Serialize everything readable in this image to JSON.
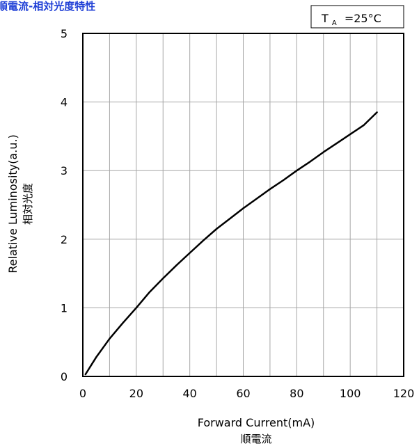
{
  "chart_data": {
    "type": "line",
    "title": "順電流-相対光度特性",
    "title_color": "#1F3FD6",
    "condition": {
      "symbol": "T",
      "subscript": "A",
      "value": "=25°C"
    },
    "xlabel": "Forward Current(mA)",
    "xlabel_sub": "順電流",
    "ylabel": "Relative Luminosity(a.u.)",
    "ylabel_sub": "相対光度",
    "xlim": [
      0,
      120
    ],
    "ylim": [
      0,
      5
    ],
    "x_ticks": [
      {
        "value": 0,
        "label": "0"
      },
      {
        "value": 20,
        "label": "20"
      },
      {
        "value": 40,
        "label": "40"
      },
      {
        "value": 60,
        "label": "60"
      },
      {
        "value": 80,
        "label": "80"
      },
      {
        "value": 100,
        "label": "100"
      },
      {
        "value": 120,
        "label": "120"
      }
    ],
    "y_ticks": [
      {
        "value": 0,
        "label": "0"
      },
      {
        "value": 1,
        "label": "1"
      },
      {
        "value": 2,
        "label": "2"
      },
      {
        "value": 3,
        "label": "3"
      },
      {
        "value": 4,
        "label": "4"
      },
      {
        "value": 5,
        "label": "5"
      }
    ],
    "x_grid_step": 10,
    "grid": true,
    "grid_color": "#A6A6A6",
    "line_color": "#000000",
    "series": [
      {
        "x": [
          1,
          5,
          10,
          15,
          20,
          25,
          30,
          35,
          40,
          45,
          50,
          55,
          60,
          65,
          70,
          75,
          80,
          85,
          90,
          95,
          100,
          105,
          110
        ],
        "y": [
          0.03,
          0.28,
          0.55,
          0.78,
          1.0,
          1.23,
          1.43,
          1.62,
          1.8,
          1.98,
          2.15,
          2.3,
          2.45,
          2.59,
          2.73,
          2.86,
          3.0,
          3.13,
          3.27,
          3.4,
          3.53,
          3.66,
          3.85
        ]
      }
    ]
  }
}
